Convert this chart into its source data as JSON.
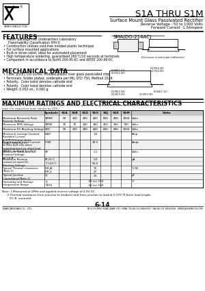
{
  "title": "S1A THRU S1M",
  "subtitle1": "Surface Mount Glass Passivated Rectifier",
  "subtitle2": "Reverse Voltage - 50 to 1000 Volts",
  "subtitle3": "Forward Current -1.0Ampere",
  "package": "SMA(DO-214AC)",
  "features_title": "FEATURES",
  "features": [
    "Plastic package has Underwriters Laboratory",
    "  Flammability Classification 94V-0",
    "Construction utilizes void-free molded plastic technique",
    "For surface mounted applications",
    "Built-in strain relief, ideal for automated placement",
    "High temperature soldering, guaranteed 260°C/10 seconds at terminals",
    "Component in accordance to RoHS 200-95-EC and WEEE 200-96-EC"
  ],
  "mech_title": "MECHANICAL DATA",
  "mech_items": [
    "Case: JEDEC DO-214AC molded plastic over glass passivated chip",
    "Terminals: Solder plated, solderable per MIL STD 750, Method 2026",
    "Polarity:  Color band denotes cathode end",
    "Polarity:  Color band denotes cathode end",
    "Weight: 0.002 oz., 0.060 g"
  ],
  "ratings_title": "MAXIMUM RATINGS AND ELECTRICAL CHARACTERISTICS",
  "ratings_note": "(Ratings at 25°C ambient temperature unless otherwise specified. Single phase, half wave 60Hz, resistive or inductive\nload. For capacitive load, derate by 20%.)",
  "note1": "Note: 1.Measured at 1MHz and applied reverse voltage of 4.0V DC.",
  "note2": "      2.Thermal resistance from junction to ambient and from junction to lead at 0.375\"/9.5mm lead length,",
  "note3": "         P.C.B. mounted",
  "page_num": "6-14",
  "company": "JINAN JINGDIAN CO., LTD.",
  "address": "NO.51 HUPING ROAD JINAN  P.R. CHINA  TEL:86-531-88643657  FAX:86-531-88641098   WWW.JNUSEMICON.COM",
  "bg_color": "#ffffff"
}
